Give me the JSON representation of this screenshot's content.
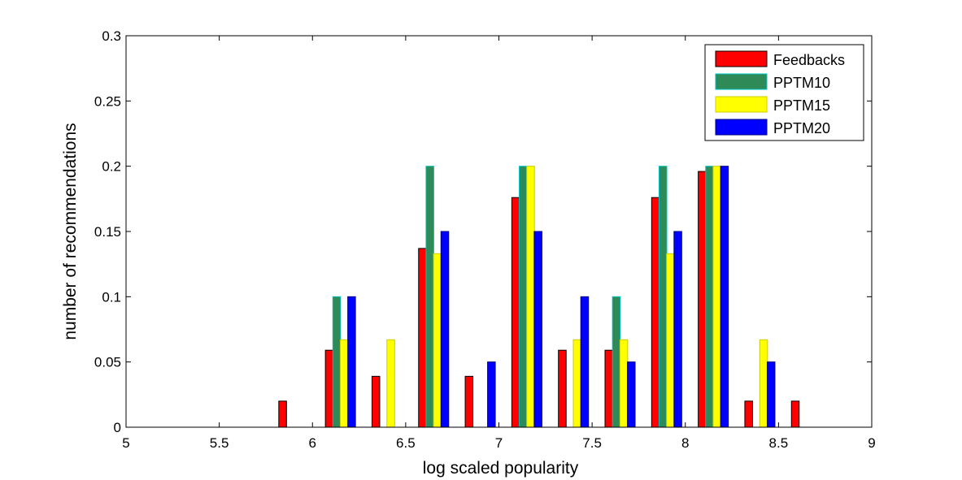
{
  "chart_data": {
    "type": "bar",
    "xlabel": "log scaled popularity",
    "ylabel": "number of recommendations",
    "xlim": [
      5,
      9
    ],
    "ylim": [
      0,
      0.3
    ],
    "xticks": [
      "5",
      "5.5",
      "6",
      "6.5",
      "7",
      "7.5",
      "8",
      "8.5",
      "9"
    ],
    "yticks": [
      "0",
      "0.05",
      "0.1",
      "0.15",
      "0.2",
      "0.25",
      "0.3"
    ],
    "grid": false,
    "legend_position": "top-right",
    "group_centers": [
      5.15,
      5.4,
      5.65,
      5.9,
      6.15,
      6.4,
      6.65,
      6.9,
      7.15,
      7.4,
      7.65,
      7.9,
      8.15,
      8.4,
      8.65,
      8.9
    ],
    "series": [
      {
        "name": "Feedbacks",
        "color": "#ff0000",
        "edge": "#000000",
        "values": [
          0,
          0,
          0,
          0.02,
          0.059,
          0.039,
          0.137,
          0.039,
          0.176,
          0.059,
          0.059,
          0.176,
          0.196,
          0.02,
          0.02,
          0
        ]
      },
      {
        "name": "PPTM10",
        "color": "#2e8b57",
        "edge": "#00bfbf",
        "values": [
          0,
          0,
          0,
          0,
          0.1,
          0,
          0.2,
          0,
          0.2,
          0,
          0.1,
          0.2,
          0.2,
          0,
          0,
          0
        ]
      },
      {
        "name": "PPTM15",
        "color": "#ffff00",
        "edge": "#cccc00",
        "values": [
          0,
          0,
          0,
          0,
          0.067,
          0.067,
          0.133,
          0,
          0.2,
          0.067,
          0.067,
          0.133,
          0.2,
          0.067,
          0,
          0
        ]
      },
      {
        "name": "PPTM20",
        "color": "#0000ff",
        "edge": "#000080",
        "values": [
          0,
          0,
          0,
          0,
          0.1,
          0,
          0.15,
          0.05,
          0.15,
          0.1,
          0.05,
          0.15,
          0.2,
          0.05,
          0,
          0
        ]
      }
    ]
  }
}
